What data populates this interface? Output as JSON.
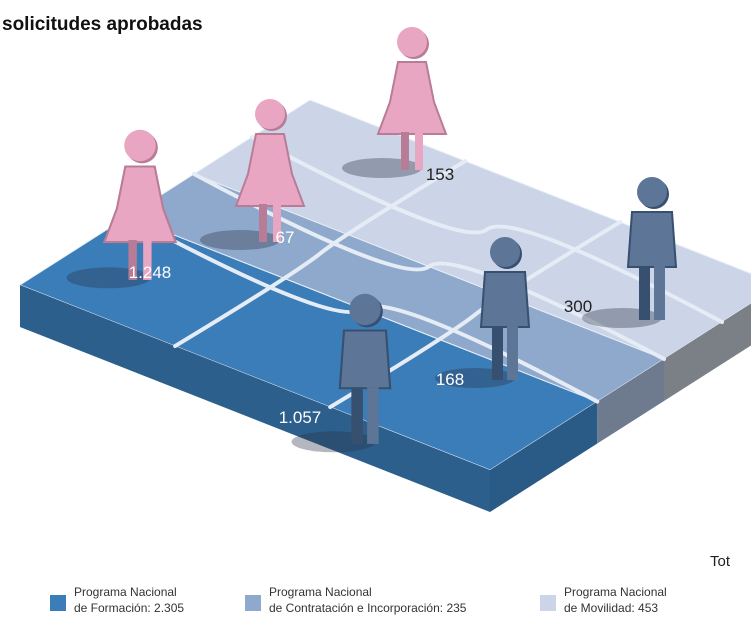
{
  "title": "solicitudes aprobadas",
  "figures": {
    "women": [
      "1.248",
      "67",
      "153"
    ],
    "men": [
      "1.057",
      "168",
      "300"
    ]
  },
  "legend": [
    {
      "line1": "Programa Nacional",
      "line2": "de Formación: 2.305"
    },
    {
      "line1": "Programa Nacional",
      "line2": "de Contratación e Incorporación: 235"
    },
    {
      "line1": "Programa Nacional",
      "line2": "de Movilidad: 453"
    }
  ],
  "total": "Tot"
}
